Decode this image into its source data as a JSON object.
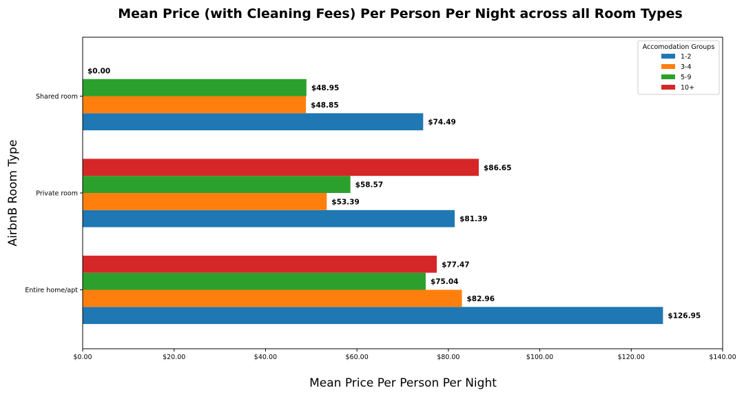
{
  "chart_data": {
    "type": "bar",
    "orientation": "horizontal",
    "title": "Mean Price (with Cleaning Fees) Per Person Per Night across all Room Types",
    "xlabel": "Mean Price Per Person Per Night",
    "ylabel": "AirbnB Room Type",
    "categories": [
      "Entire home/apt",
      "Private room",
      "Shared room"
    ],
    "xlim": [
      0,
      140
    ],
    "x_ticks": [
      0,
      20,
      40,
      60,
      80,
      100,
      120,
      140
    ],
    "x_tick_labels": [
      "$0.00",
      "$20.00",
      "$40.00",
      "$60.00",
      "$80.00",
      "$100.00",
      "$120.00",
      "$140.00"
    ],
    "grid": false,
    "legend": {
      "title": "Accomodation Groups",
      "position": "top-right"
    },
    "series": [
      {
        "name": "1-2",
        "color": "#1f77b4",
        "values": [
          126.95,
          81.39,
          74.49
        ],
        "labels": [
          "$126.95",
          "$81.39",
          "$74.49"
        ]
      },
      {
        "name": "3-4",
        "color": "#ff7f0e",
        "values": [
          82.96,
          53.39,
          48.85
        ],
        "labels": [
          "$82.96",
          "$53.39",
          "$48.85"
        ]
      },
      {
        "name": "5-9",
        "color": "#2ca02c",
        "values": [
          75.04,
          58.57,
          48.95
        ],
        "labels": [
          "$75.04",
          "$58.57",
          "$48.95"
        ]
      },
      {
        "name": "10+",
        "color": "#d62728",
        "values": [
          77.47,
          86.65,
          0.0
        ],
        "labels": [
          "$77.47",
          "$86.65",
          "$0.00"
        ]
      }
    ]
  }
}
